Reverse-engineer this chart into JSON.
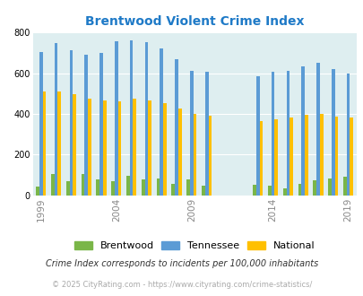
{
  "title": "Brentwood Violent Crime Index",
  "years": [
    1999,
    2000,
    2001,
    2002,
    2003,
    2004,
    2005,
    2006,
    2007,
    2008,
    2009,
    2010,
    2013,
    2014,
    2015,
    2016,
    2017,
    2018,
    2019
  ],
  "brentwood": [
    42,
    105,
    68,
    105,
    80,
    68,
    95,
    80,
    85,
    55,
    80,
    48,
    50,
    48,
    35,
    58,
    72,
    85,
    92
  ],
  "tennessee": [
    705,
    748,
    715,
    690,
    698,
    758,
    762,
    752,
    720,
    668,
    612,
    608,
    585,
    608,
    612,
    635,
    652,
    620,
    598
  ],
  "national": [
    510,
    510,
    498,
    475,
    465,
    463,
    475,
    468,
    455,
    428,
    402,
    390,
    367,
    375,
    383,
    398,
    400,
    385,
    382
  ],
  "bar_colors": {
    "brentwood": "#7ab648",
    "tennessee": "#5b9bd5",
    "national": "#ffc000"
  },
  "bg_color": "#deeef0",
  "ylim": [
    0,
    800
  ],
  "yticks": [
    0,
    200,
    400,
    600,
    800
  ],
  "xlabel_years": [
    1999,
    2004,
    2009,
    2014,
    2019
  ],
  "footnote1": "Crime Index corresponds to incidents per 100,000 inhabitants",
  "footnote2": "© 2025 CityRating.com - https://www.cityrating.com/crime-statistics/",
  "legend_labels": [
    "Brentwood",
    "Tennessee",
    "National"
  ],
  "title_color": "#1f7ac7",
  "footnote1_color": "#333333",
  "footnote2_color": "#aaaaaa"
}
